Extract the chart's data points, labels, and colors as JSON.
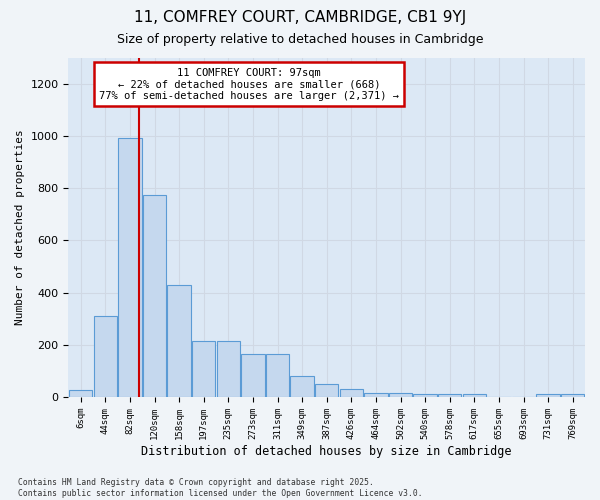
{
  "title_line1": "11, COMFREY COURT, CAMBRIDGE, CB1 9YJ",
  "title_line2": "Size of property relative to detached houses in Cambridge",
  "xlabel": "Distribution of detached houses by size in Cambridge",
  "ylabel": "Number of detached properties",
  "categories": [
    "6sqm",
    "44sqm",
    "82sqm",
    "120sqm",
    "158sqm",
    "197sqm",
    "235sqm",
    "273sqm",
    "311sqm",
    "349sqm",
    "387sqm",
    "426sqm",
    "464sqm",
    "502sqm",
    "540sqm",
    "578sqm",
    "617sqm",
    "655sqm",
    "693sqm",
    "731sqm",
    "769sqm"
  ],
  "values": [
    25,
    310,
    990,
    775,
    430,
    215,
    215,
    165,
    165,
    80,
    50,
    30,
    15,
    15,
    10,
    10,
    10,
    0,
    0,
    10,
    10
  ],
  "bar_color": "#c5d8ee",
  "bar_edge_color": "#5b9bd5",
  "red_line_x": 2.35,
  "annotation_line1": "11 COMFREY COURT: 97sqm",
  "annotation_line2": "← 22% of detached houses are smaller (668)",
  "annotation_line3": "77% of semi-detached houses are larger (2,371) →",
  "annotation_box_color": "#ffffff",
  "annotation_box_edge": "#cc0000",
  "ylim": [
    0,
    1300
  ],
  "yticks": [
    0,
    200,
    400,
    600,
    800,
    1000,
    1200
  ],
  "grid_color": "#d0d8e4",
  "plot_bg_color": "#dce8f5",
  "fig_bg_color": "#f0f4f8",
  "footer_line1": "Contains HM Land Registry data © Crown copyright and database right 2025.",
  "footer_line2": "Contains public sector information licensed under the Open Government Licence v3.0."
}
